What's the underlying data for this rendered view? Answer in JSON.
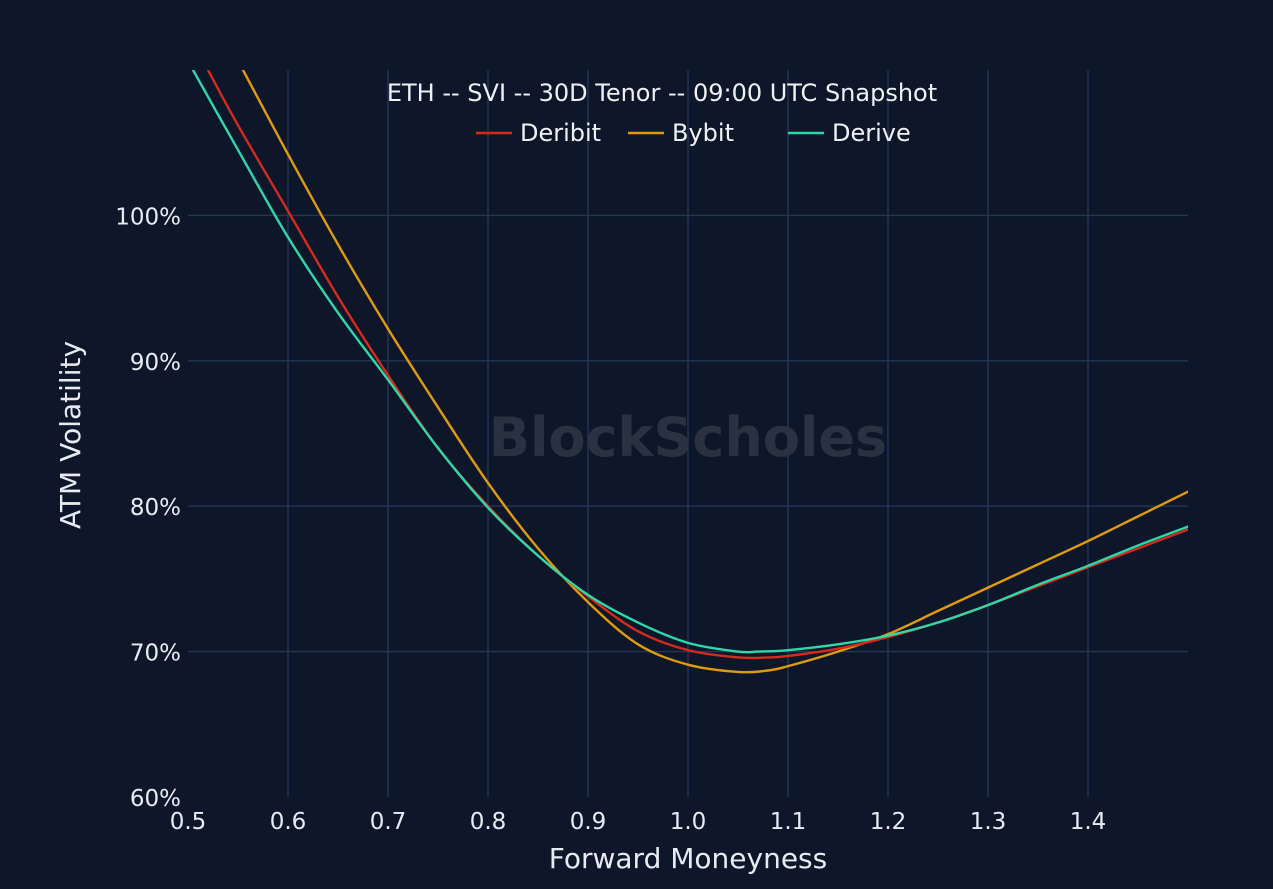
{
  "chart_data": {
    "type": "line",
    "title": "ETH -- SVI -- 30D Tenor -- 09:00 UTC Snapshot",
    "xlabel": "Forward Moneyness",
    "ylabel": "ATM Volatility",
    "watermark": "BlockScholes",
    "xlim": [
      0.5,
      1.5
    ],
    "ylim": [
      60,
      110
    ],
    "x_ticks": [
      {
        "value": 0.5,
        "label": "0.5"
      },
      {
        "value": 0.6,
        "label": "0.6"
      },
      {
        "value": 0.7,
        "label": "0.7"
      },
      {
        "value": 0.8,
        "label": "0.8"
      },
      {
        "value": 0.9,
        "label": "0.9"
      },
      {
        "value": 1.0,
        "label": "1.0"
      },
      {
        "value": 1.1,
        "label": "1.1"
      },
      {
        "value": 1.2,
        "label": "1.2"
      },
      {
        "value": 1.3,
        "label": "1.3"
      },
      {
        "value": 1.4,
        "label": "1.4"
      }
    ],
    "y_ticks": [
      {
        "value": 60,
        "label": "60%"
      },
      {
        "value": 70,
        "label": "70%"
      },
      {
        "value": 80,
        "label": "80%"
      },
      {
        "value": 90,
        "label": "90%"
      },
      {
        "value": 100,
        "label": "100%"
      }
    ],
    "grid": true,
    "legend_position": "top-center",
    "background_color": "#0e172a",
    "grid_color": "#243556",
    "series": [
      {
        "name": "Deribit",
        "color": "#d42b1c",
        "x": [
          0.52,
          0.55,
          0.6,
          0.65,
          0.7,
          0.75,
          0.8,
          0.85,
          0.9,
          0.95,
          1.0,
          1.05,
          1.08,
          1.1,
          1.15,
          1.2,
          1.25,
          1.3,
          1.35,
          1.4,
          1.45,
          1.5
        ],
        "y": [
          110,
          106.2,
          100.3,
          94.4,
          89.0,
          84.0,
          80.0,
          76.6,
          73.8,
          71.4,
          70.1,
          69.6,
          69.6,
          69.7,
          70.2,
          71.0,
          72.0,
          73.2,
          74.5,
          75.8,
          77.1,
          78.4
        ]
      },
      {
        "name": "Bybit",
        "color": "#e09b0c",
        "x": [
          0.555,
          0.6,
          0.65,
          0.7,
          0.75,
          0.8,
          0.85,
          0.9,
          0.95,
          1.0,
          1.05,
          1.08,
          1.1,
          1.15,
          1.2,
          1.25,
          1.3,
          1.35,
          1.4,
          1.45,
          1.5
        ],
        "y": [
          110,
          104.2,
          98.0,
          92.2,
          86.8,
          81.6,
          77.1,
          73.4,
          70.5,
          69.1,
          68.6,
          68.7,
          69.0,
          70.0,
          71.2,
          72.8,
          74.4,
          76.0,
          77.6,
          79.3,
          81.0
        ]
      },
      {
        "name": "Derive",
        "color": "#2ed8a9",
        "x": [
          0.505,
          0.55,
          0.6,
          0.65,
          0.7,
          0.75,
          0.8,
          0.85,
          0.9,
          0.95,
          1.0,
          1.05,
          1.07,
          1.1,
          1.15,
          1.2,
          1.25,
          1.3,
          1.35,
          1.4,
          1.45,
          1.5
        ],
        "y": [
          110,
          104.5,
          98.5,
          93.3,
          88.7,
          84.0,
          79.9,
          76.6,
          73.9,
          72.0,
          70.6,
          70.0,
          70.0,
          70.1,
          70.5,
          71.1,
          72.0,
          73.2,
          74.6,
          75.9,
          77.3,
          78.6
        ]
      }
    ]
  }
}
